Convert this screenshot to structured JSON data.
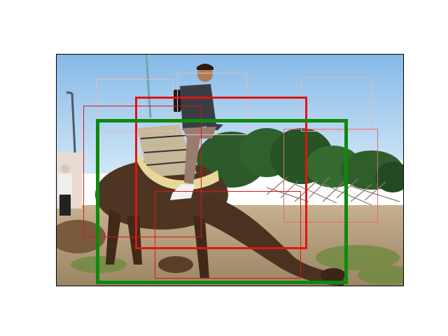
{
  "scene": {
    "description_icons": [
      "camel-illustration",
      "rider-illustration",
      "sky-background",
      "trees-background",
      "ground-foreground"
    ],
    "colors": {
      "sky": "#8fc0ea",
      "sky_light": "#cfe5f7",
      "trees": "#2e5a2a",
      "ground": "#b49a79",
      "camel": "#4e3522",
      "rider_shirt": "#3a3e44",
      "rider_pants": "#9a7c6e"
    }
  },
  "overlays": {
    "primary_color": "#0d8a0d",
    "secondary_color": "#e11414",
    "faint_color": "#e6a0a8",
    "count": 9
  }
}
